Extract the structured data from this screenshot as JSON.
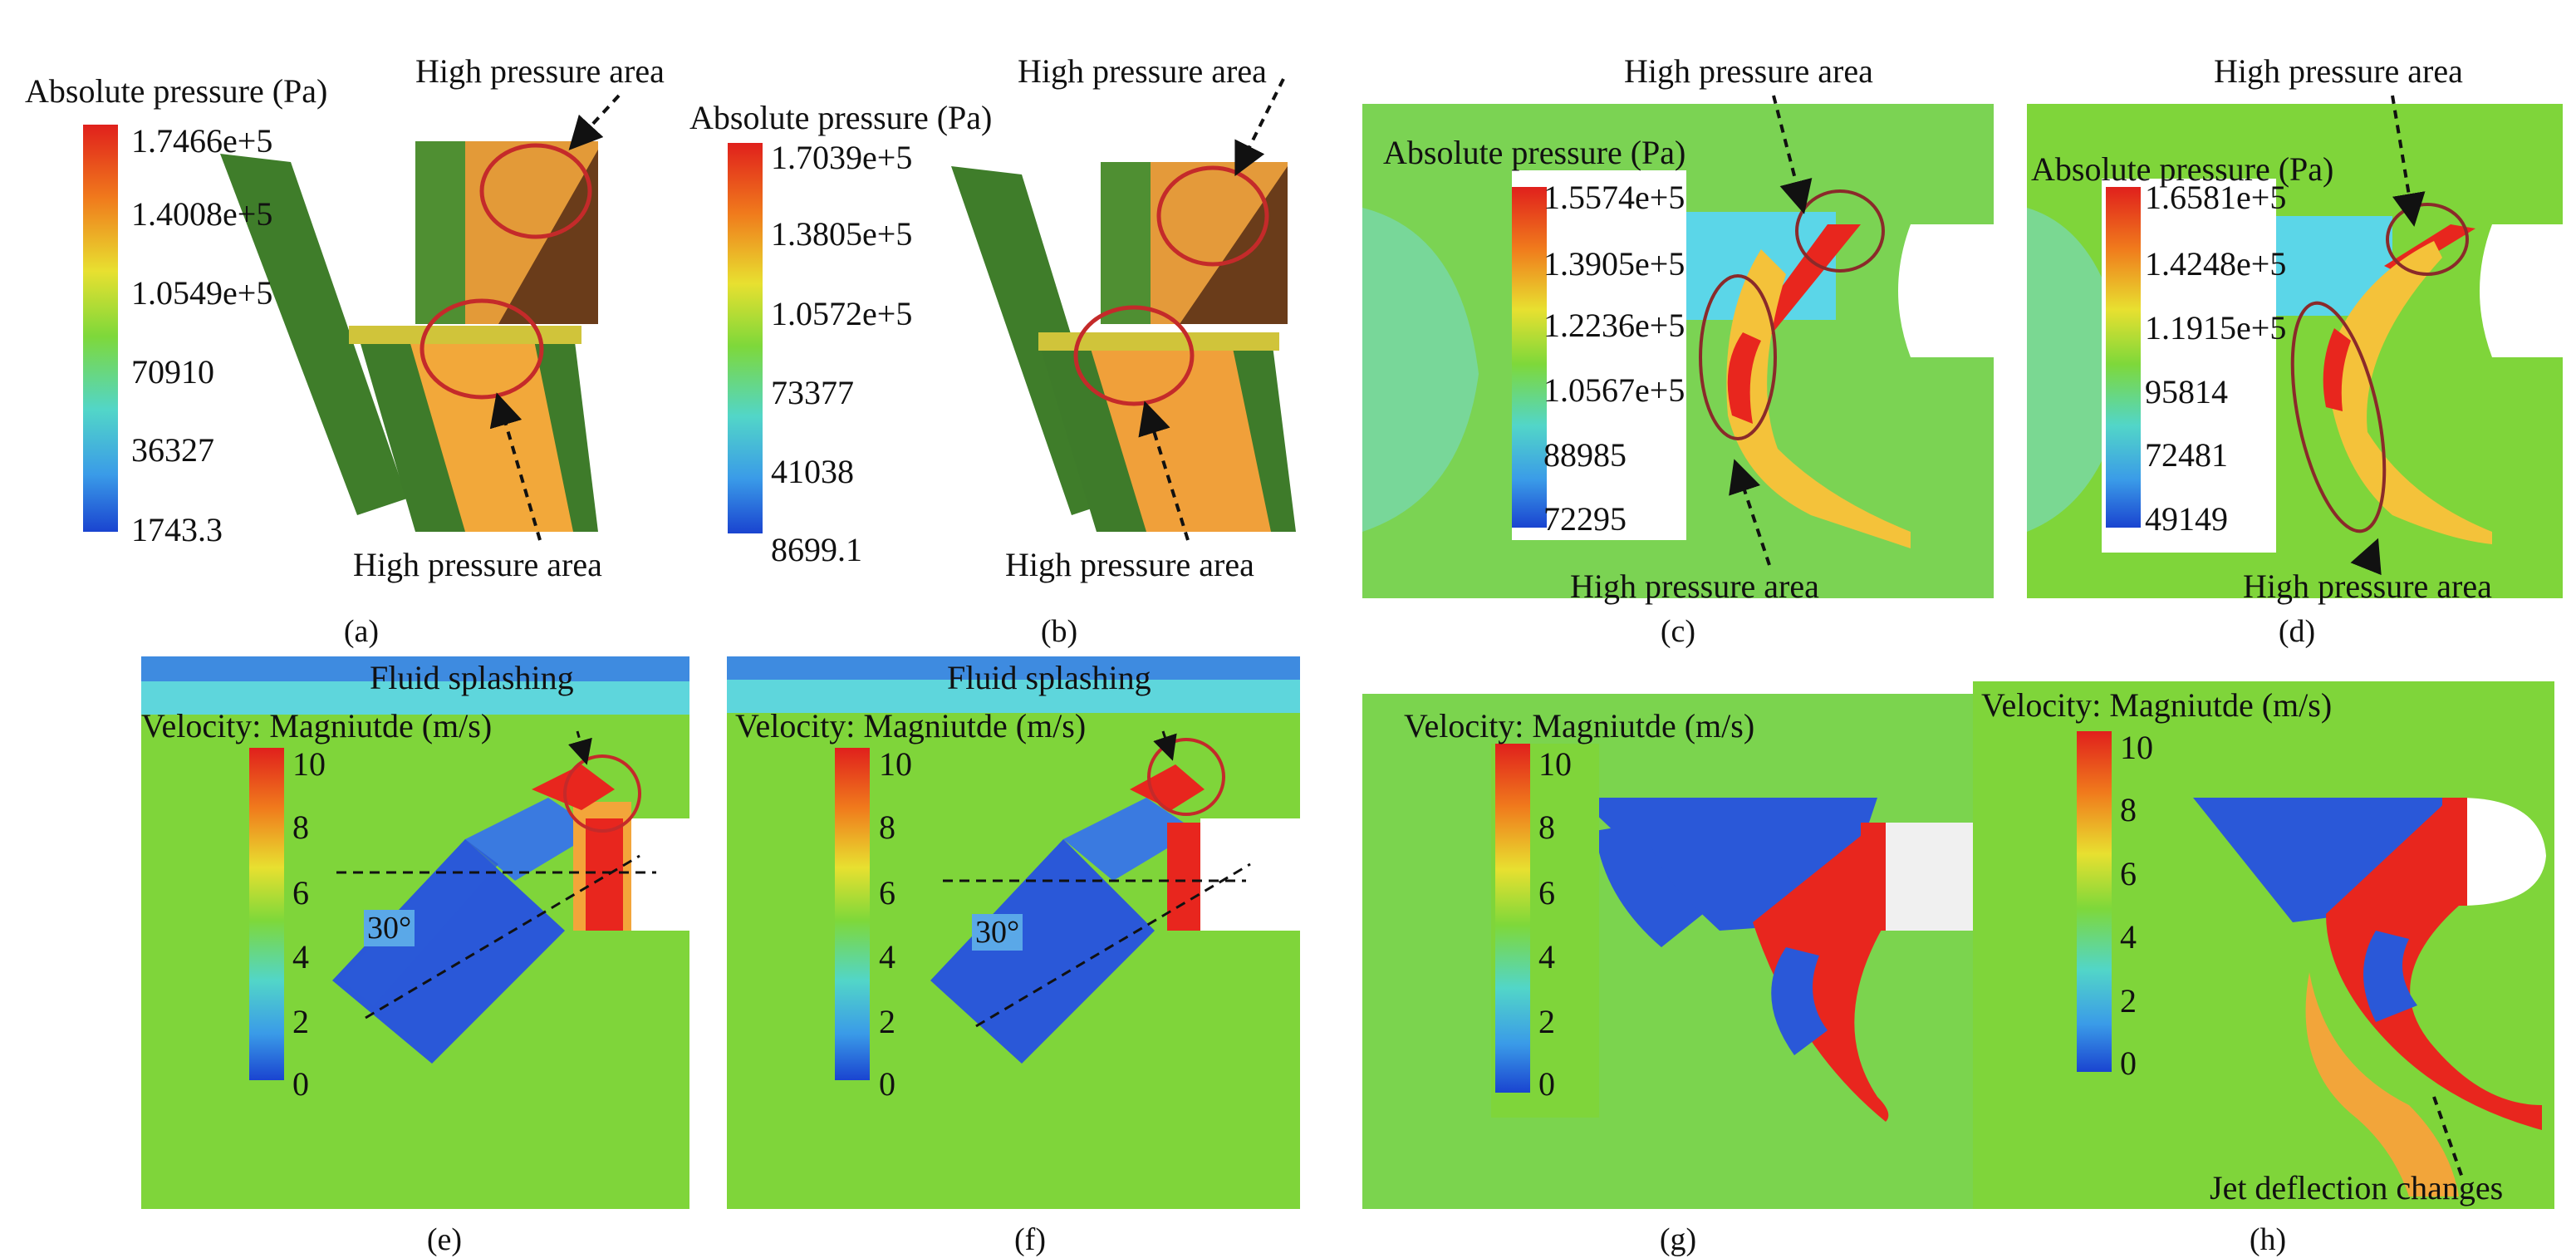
{
  "panels": [
    {
      "id": "a",
      "caption": "(a)",
      "colorbar_title": "Absolute pressure (Pa)",
      "ticks": [
        "1.7466e+5",
        "1.4008e+5",
        "1.0549e+5",
        "70910",
        "36327",
        "1743.3"
      ],
      "annotations": [
        "High pressure area",
        "High pressure area"
      ]
    },
    {
      "id": "b",
      "caption": "(b)",
      "colorbar_title": "Absolute pressure (Pa)",
      "ticks": [
        "1.7039e+5",
        "1.3805e+5",
        "1.0572e+5",
        "73377",
        "41038",
        "8699.1"
      ],
      "annotations": [
        "High pressure area",
        "High pressure area"
      ]
    },
    {
      "id": "c",
      "caption": "(c)",
      "colorbar_title": "Absolute pressure (Pa)",
      "ticks": [
        "1.5574e+5",
        "1.3905e+5",
        "1.2236e+5",
        "1.0567e+5",
        "88985",
        "72295"
      ],
      "annotations": [
        "High pressure area",
        "High pressure area"
      ]
    },
    {
      "id": "d",
      "caption": "(d)",
      "colorbar_title": "Absolute pressure (Pa)",
      "ticks": [
        "1.6581e+5",
        "1.4248e+5",
        "1.1915e+5",
        "95814",
        "72481",
        "49149"
      ],
      "annotations": [
        "High pressure area",
        "High pressure area"
      ]
    },
    {
      "id": "e",
      "caption": "(e)",
      "colorbar_title": "Velocity: Magniutde (m/s)",
      "ticks": [
        "10",
        "8",
        "6",
        "4",
        "2",
        "0"
      ],
      "annotations": [
        "Fluid splashing"
      ],
      "angle": "30°"
    },
    {
      "id": "f",
      "caption": "(f)",
      "colorbar_title": "Velocity: Magniutde (m/s)",
      "ticks": [
        "10",
        "8",
        "6",
        "4",
        "2",
        "0"
      ],
      "annotations": [
        "Fluid splashing"
      ],
      "angle": "30°"
    },
    {
      "id": "g",
      "caption": "(g)",
      "colorbar_title": "Velocity: Magniutde (m/s)",
      "ticks": [
        "10",
        "8",
        "6",
        "4",
        "2",
        "0"
      ],
      "annotations": []
    },
    {
      "id": "h",
      "caption": "(h)",
      "colorbar_title": "Velocity: Magniutde (m/s)",
      "ticks": [
        "10",
        "8",
        "6",
        "4",
        "2",
        "0"
      ],
      "annotations": [
        "Jet deflection changes"
      ]
    }
  ],
  "colors": {
    "field_green": "#7fd53a",
    "high": "#e8231a",
    "mid": "#f2e23a",
    "low": "#1d4fd8",
    "ring": "#c42a2a",
    "solid_green": "#3f7d2a"
  }
}
